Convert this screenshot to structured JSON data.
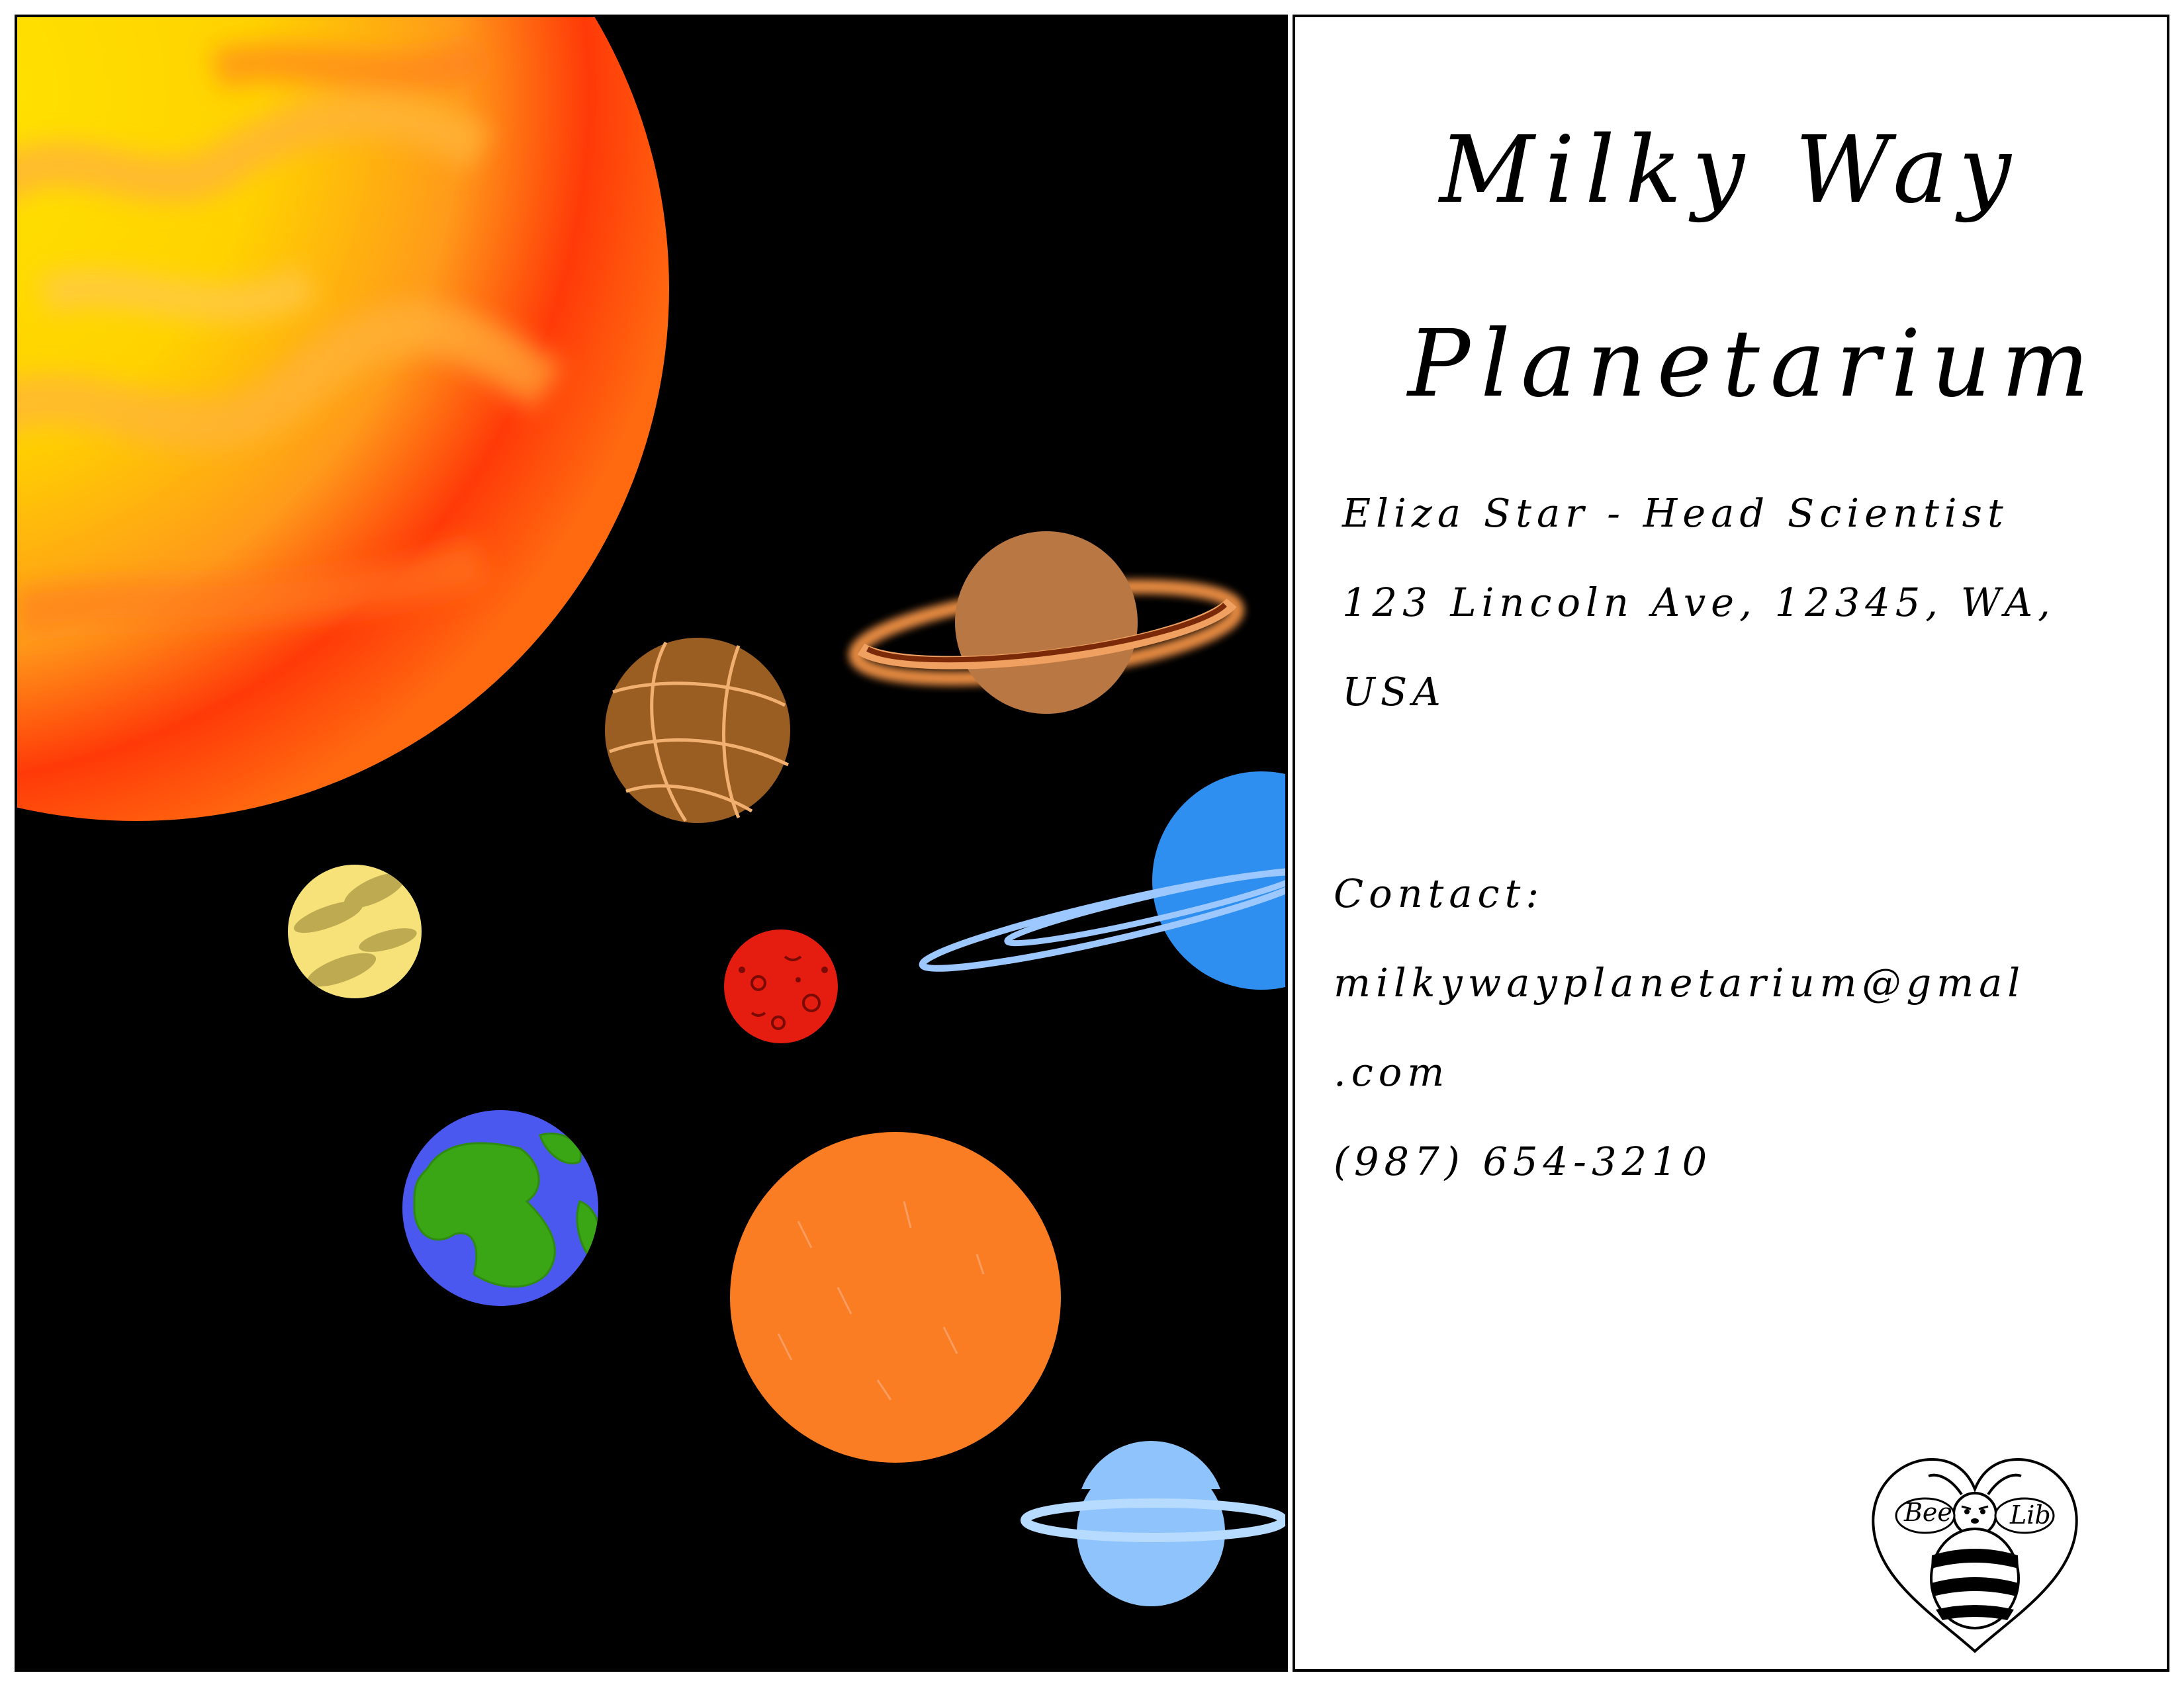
{
  "title": {
    "line1": "Milky Way",
    "line2": "Planetarium"
  },
  "details": {
    "name_line": "Eliza Star - Head Scientist",
    "address_line1": "123 Lincoln Ave, 12345, WA,",
    "address_line2": "USA",
    "contact_label": "Contact:",
    "email_line1": "milkywayplanetarium@gmal",
    "email_line2": ".com",
    "phone": "(987) 654-3210"
  },
  "logo": {
    "left_text": "Bee",
    "right_text": "Lib"
  },
  "icons": [
    "sun-icon",
    "saturn-icon",
    "jupiter-icon",
    "uranus-icon",
    "venus-icon",
    "mars-icon",
    "earth-icon",
    "neptune-icon",
    "mercury-icon",
    "bee-lib-logo-icon"
  ],
  "colors": {
    "space": "#000000",
    "sun_core": "#ffdd00",
    "sun_edge": "#ff2200",
    "saturn": "#b97744",
    "jupiter": "#9a5e22",
    "neptune": "#2f8ff0",
    "venus": "#f7e27a",
    "mars": "#e51c10",
    "earth_ocean": "#4a58f0",
    "earth_land": "#3aa515",
    "sun_orange": "#fa7d23",
    "uranus": "#8fc3fb"
  }
}
